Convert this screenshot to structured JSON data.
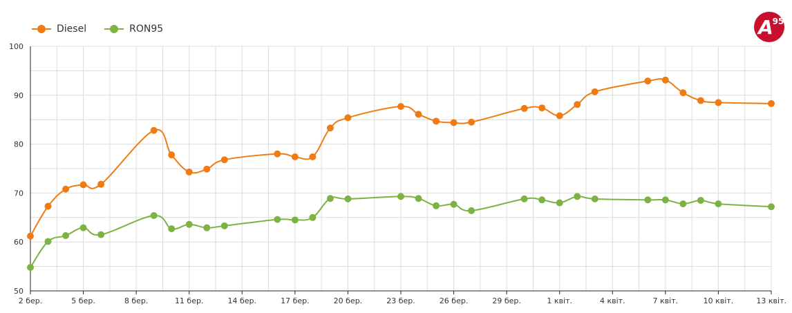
{
  "logo": {
    "letter": "A",
    "number": "95",
    "color": "#c8102e"
  },
  "chart_data": {
    "type": "line",
    "title": "",
    "xlabel": "",
    "ylabel": "",
    "ylim": [
      50,
      100
    ],
    "yticks": [
      50,
      60,
      70,
      80,
      90,
      100
    ],
    "xlim": [
      0,
      42
    ],
    "xticks": [
      {
        "x": 0,
        "label": "2 бер."
      },
      {
        "x": 3,
        "label": "5 бер."
      },
      {
        "x": 6,
        "label": "8 бер."
      },
      {
        "x": 9,
        "label": "11 бер."
      },
      {
        "x": 12,
        "label": "14 бер."
      },
      {
        "x": 15,
        "label": "17 бер."
      },
      {
        "x": 18,
        "label": "20 бер."
      },
      {
        "x": 21,
        "label": "23 бер."
      },
      {
        "x": 24,
        "label": "26 бер."
      },
      {
        "x": 27,
        "label": "29 бер."
      },
      {
        "x": 30,
        "label": "1 квіт."
      },
      {
        "x": 33,
        "label": "4 квіт."
      },
      {
        "x": 36,
        "label": "7 квіт."
      },
      {
        "x": 39,
        "label": "10 квіт."
      },
      {
        "x": 42,
        "label": "13 квіт."
      }
    ],
    "grid": true,
    "legend": "top-left",
    "series": [
      {
        "name": "Diesel",
        "color": "#f07b13",
        "points": [
          [
            0,
            61.2
          ],
          [
            1,
            67.3
          ],
          [
            2,
            70.8
          ],
          [
            3,
            71.7
          ],
          [
            4,
            71.8
          ],
          [
            7,
            82.8
          ],
          [
            8,
            77.8
          ],
          [
            9,
            74.3
          ],
          [
            10,
            74.9
          ],
          [
            11,
            76.8
          ],
          [
            14,
            78.0
          ],
          [
            15,
            77.4
          ],
          [
            16,
            77.4
          ],
          [
            17,
            83.3
          ],
          [
            18,
            85.4
          ],
          [
            21,
            87.7
          ],
          [
            22,
            86.1
          ],
          [
            23,
            84.7
          ],
          [
            24,
            84.4
          ],
          [
            25,
            84.5
          ],
          [
            28,
            87.3
          ],
          [
            29,
            87.4
          ],
          [
            30,
            85.8
          ],
          [
            31,
            88.1
          ],
          [
            32,
            90.7
          ],
          [
            35,
            92.9
          ],
          [
            36,
            93.1
          ],
          [
            37,
            90.5
          ],
          [
            38,
            88.9
          ],
          [
            39,
            88.5
          ],
          [
            42,
            88.3
          ]
        ]
      },
      {
        "name": "RON95",
        "color": "#7cb342",
        "points": [
          [
            0,
            54.8
          ],
          [
            1,
            60.1
          ],
          [
            2,
            61.3
          ],
          [
            3,
            62.9
          ],
          [
            4,
            61.5
          ],
          [
            7,
            65.4
          ],
          [
            8,
            62.7
          ],
          [
            9,
            63.6
          ],
          [
            10,
            62.9
          ],
          [
            11,
            63.3
          ],
          [
            14,
            64.6
          ],
          [
            15,
            64.5
          ],
          [
            16,
            65.0
          ],
          [
            17,
            68.9
          ],
          [
            18,
            68.8
          ],
          [
            21,
            69.3
          ],
          [
            22,
            68.9
          ],
          [
            23,
            67.4
          ],
          [
            24,
            67.7
          ],
          [
            25,
            66.4
          ],
          [
            28,
            68.8
          ],
          [
            29,
            68.6
          ],
          [
            30,
            68.0
          ],
          [
            31,
            69.3
          ],
          [
            32,
            68.8
          ],
          [
            35,
            68.6
          ],
          [
            36,
            68.6
          ],
          [
            37,
            67.8
          ],
          [
            38,
            68.5
          ],
          [
            39,
            67.8
          ],
          [
            42,
            67.2
          ]
        ]
      }
    ]
  }
}
